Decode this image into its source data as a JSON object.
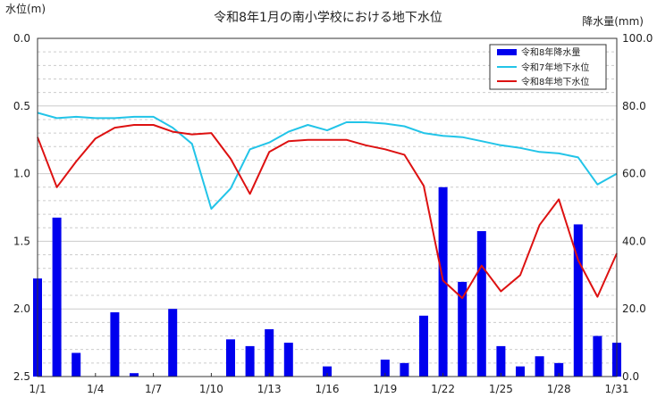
{
  "chart_data": {
    "type": "bar+line",
    "title": "令和8年1月の南小学校における地下水位",
    "left_axis_label": "水位(m)",
    "right_axis_label": "降水量(mm)",
    "left_axis": {
      "min": 0.0,
      "max": 2.5,
      "inverted": true,
      "ticks": [
        "0.0",
        "0.5",
        "1.0",
        "1.5",
        "2.0",
        "2.5"
      ]
    },
    "right_axis": {
      "min": 0.0,
      "max": 100.0,
      "ticks": [
        "0.0",
        "20.0",
        "40.0",
        "60.0",
        "80.0",
        "100.0"
      ]
    },
    "x_labels": [
      "1/1",
      "1/4",
      "1/7",
      "1/10",
      "1/13",
      "1/16",
      "1/19",
      "1/22",
      "1/25",
      "1/28",
      "1/31"
    ],
    "x_label_days": [
      1,
      4,
      7,
      10,
      13,
      16,
      19,
      22,
      25,
      28,
      31
    ],
    "days": [
      1,
      2,
      3,
      4,
      5,
      6,
      7,
      8,
      9,
      10,
      11,
      12,
      13,
      14,
      15,
      16,
      17,
      18,
      19,
      20,
      21,
      22,
      23,
      24,
      25,
      26,
      27,
      28,
      29,
      30,
      31
    ],
    "grid": true,
    "legend_position": "top-right",
    "colors": {
      "bar": "#0000ee",
      "line_r7": "#22c4e8",
      "line_r8": "#dd1111",
      "grid": "#cccccc"
    },
    "series": [
      {
        "name": "令和8年降水量",
        "kind": "bar",
        "axis": "right",
        "values": [
          29,
          47,
          7,
          0,
          19,
          1,
          0,
          20,
          0,
          0,
          11,
          9,
          14,
          10,
          0,
          3,
          0,
          0,
          5,
          4,
          18,
          56,
          28,
          43,
          9,
          3,
          6,
          4,
          45,
          12,
          10
        ]
      },
      {
        "name": "令和7年地下水位",
        "kind": "line",
        "axis": "left",
        "values": [
          0.55,
          0.59,
          0.58,
          0.59,
          0.59,
          0.58,
          0.58,
          0.66,
          0.78,
          1.26,
          1.11,
          0.82,
          0.77,
          0.69,
          0.64,
          0.68,
          0.62,
          0.62,
          0.63,
          0.65,
          0.7,
          0.72,
          0.73,
          0.76,
          0.79,
          0.81,
          0.84,
          0.85,
          0.88,
          1.08,
          1.0
        ]
      },
      {
        "name": "令和8年地下水位",
        "kind": "line",
        "axis": "left",
        "values": [
          0.73,
          1.1,
          0.91,
          0.74,
          0.66,
          0.64,
          0.64,
          0.69,
          0.71,
          0.7,
          0.89,
          1.15,
          0.84,
          0.76,
          0.75,
          0.75,
          0.75,
          0.79,
          0.82,
          0.86,
          1.09,
          1.79,
          1.92,
          1.68,
          1.87,
          1.75,
          1.38,
          1.19,
          1.64,
          1.91,
          1.59
        ]
      }
    ]
  }
}
